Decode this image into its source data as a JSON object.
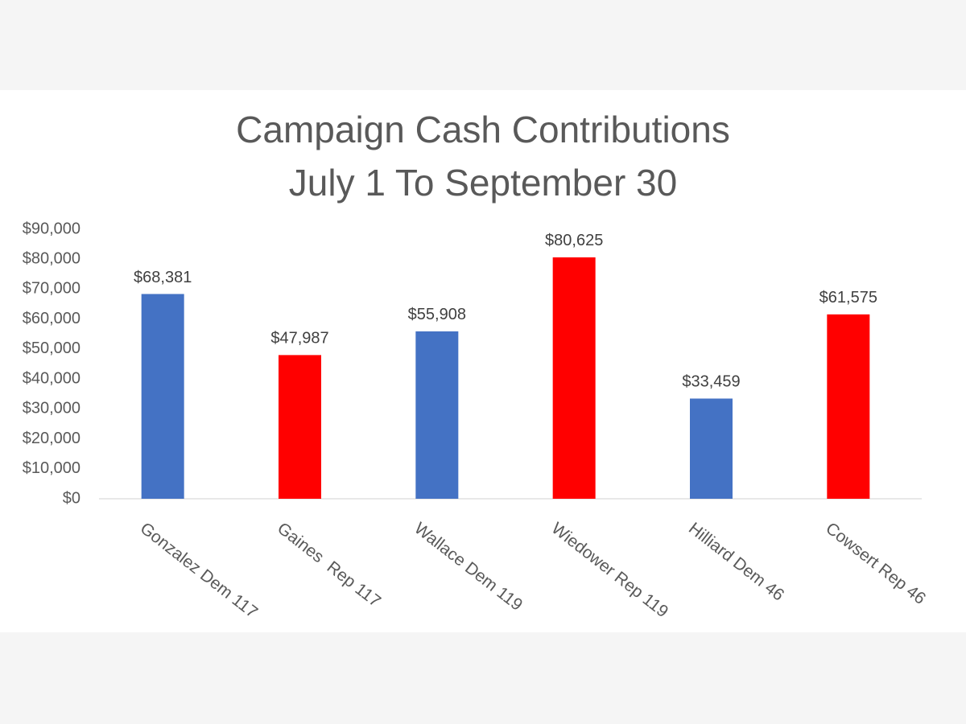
{
  "chart_data": {
    "type": "bar",
    "title": [
      "Campaign Cash Contributions",
      "July 1 To September 30"
    ],
    "xlabel": "",
    "ylabel": "",
    "ylim": [
      0,
      90000
    ],
    "yticks": [
      0,
      10000,
      20000,
      30000,
      40000,
      50000,
      60000,
      70000,
      80000,
      90000
    ],
    "ytick_labels": [
      "$0",
      "$10,000",
      "$20,000",
      "$30,000",
      "$40,000",
      "$50,000",
      "$60,000",
      "$70,000",
      "$80,000",
      "$90,000"
    ],
    "categories": [
      "Gonzalez Dem 117",
      "Gaines  Rep 117",
      "Wallace Dem 119",
      "Wiedower Rep 119",
      "Hilliard Dem 46",
      "Cowsert Rep 46"
    ],
    "values": [
      68381,
      47987,
      55908,
      80625,
      33459,
      61575
    ],
    "data_labels": [
      "$68,381",
      "$47,987",
      "$55,908",
      "$80,625",
      "$33,459",
      "$61,575"
    ],
    "bar_colors": [
      "#4472c4",
      "#ff0000",
      "#4472c4",
      "#ff0000",
      "#4472c4",
      "#ff0000"
    ],
    "grid": false,
    "legend": "none",
    "axis_color": "#d9d9d9"
  }
}
